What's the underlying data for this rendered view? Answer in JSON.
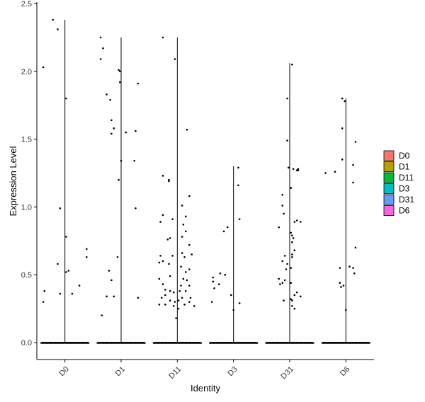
{
  "chart_data": {
    "type": "scatter",
    "subtype": "violin-with-jitter",
    "xlabel": "Identity",
    "ylabel": "Expression Level",
    "ylim": [
      0,
      2.5
    ],
    "yticks": [
      0.0,
      0.5,
      1.0,
      1.5,
      2.0,
      2.5
    ],
    "ytick_labels": [
      "0.0",
      "0.5",
      "1.0",
      "1.5",
      "2.0",
      "2.5"
    ],
    "grid": false,
    "legend_position": "right",
    "categories": [
      "D0",
      "D1",
      "D11",
      "D3",
      "D31",
      "D6"
    ],
    "fill_colors": [
      "#F8766D",
      "#B79F00",
      "#00BA38",
      "#00BFC4",
      "#619CFF",
      "#F564E3"
    ],
    "series": [
      {
        "name": "D0",
        "max": 2.38,
        "points": [
          [
            -0.5,
            2.38
          ],
          [
            -0.3,
            2.31
          ],
          [
            -0.9,
            2.03
          ],
          [
            0.05,
            1.8
          ],
          [
            -0.2,
            0.99
          ],
          [
            0.05,
            0.78
          ],
          [
            0.9,
            0.69
          ],
          [
            0.9,
            0.63
          ],
          [
            -0.3,
            0.58
          ],
          [
            0.15,
            0.53
          ],
          [
            0.05,
            0.52
          ],
          [
            -0.85,
            0.38
          ],
          [
            -0.2,
            0.36
          ],
          [
            0.3,
            0.36
          ],
          [
            0.6,
            0.42
          ],
          [
            -0.9,
            0.3
          ]
        ]
      },
      {
        "name": "D1",
        "max": 2.25,
        "points": [
          [
            -0.85,
            2.25
          ],
          [
            -0.75,
            2.17
          ],
          [
            -0.85,
            2.09
          ],
          [
            -0.1,
            2.01
          ],
          [
            -0.05,
            2.0
          ],
          [
            -0.05,
            1.92
          ],
          [
            0.7,
            1.91
          ],
          [
            -0.6,
            1.83
          ],
          [
            -0.45,
            1.79
          ],
          [
            -0.4,
            1.64
          ],
          [
            -0.3,
            1.58
          ],
          [
            0.2,
            1.55
          ],
          [
            0.6,
            1.56
          ],
          [
            -0.4,
            1.54
          ],
          [
            0.55,
            1.34
          ],
          [
            0.0,
            1.34
          ],
          [
            -0.1,
            1.2
          ],
          [
            0.6,
            0.99
          ],
          [
            -0.15,
            0.63
          ],
          [
            -0.5,
            0.53
          ],
          [
            -0.4,
            0.46
          ],
          [
            -0.6,
            0.34
          ],
          [
            -0.3,
            0.34
          ],
          [
            -0.8,
            0.2
          ],
          [
            0.7,
            0.33
          ]
        ]
      },
      {
        "name": "D11",
        "max": 2.25,
        "points": [
          [
            -0.6,
            2.25
          ],
          [
            -0.1,
            2.09
          ],
          [
            0.4,
            1.57
          ],
          [
            -0.6,
            1.23
          ],
          [
            -0.35,
            1.19
          ],
          [
            -0.35,
            1.2
          ],
          [
            0.5,
            1.08
          ],
          [
            0.2,
            1.01
          ],
          [
            -0.6,
            0.94
          ],
          [
            -0.2,
            0.91
          ],
          [
            0.35,
            0.93
          ],
          [
            -0.7,
            0.89
          ],
          [
            0.25,
            0.87
          ],
          [
            0.35,
            0.82
          ],
          [
            0.2,
            0.78
          ],
          [
            -0.3,
            0.77
          ],
          [
            -0.4,
            0.76
          ],
          [
            0.5,
            0.72
          ],
          [
            -0.7,
            0.64
          ],
          [
            -0.2,
            0.64
          ],
          [
            0.2,
            0.66
          ],
          [
            0.3,
            0.63
          ],
          [
            0.6,
            0.65
          ],
          [
            -0.75,
            0.59
          ],
          [
            -0.6,
            0.6
          ],
          [
            -0.35,
            0.58
          ],
          [
            0.15,
            0.56
          ],
          [
            0.35,
            0.52
          ],
          [
            0.5,
            0.54
          ],
          [
            0.4,
            0.46
          ],
          [
            -0.3,
            0.49
          ],
          [
            0.25,
            0.47
          ],
          [
            -0.75,
            0.47
          ],
          [
            -0.6,
            0.43
          ],
          [
            0.15,
            0.42
          ],
          [
            0.5,
            0.42
          ],
          [
            -0.15,
            0.37
          ],
          [
            -0.3,
            0.38
          ],
          [
            -0.5,
            0.39
          ],
          [
            0.1,
            0.38
          ],
          [
            0.35,
            0.38
          ],
          [
            -0.5,
            0.35
          ],
          [
            -0.65,
            0.33
          ],
          [
            0.2,
            0.33
          ],
          [
            0.55,
            0.33
          ],
          [
            -0.3,
            0.31
          ],
          [
            0.05,
            0.31
          ],
          [
            0.5,
            0.3
          ],
          [
            -0.75,
            0.28
          ],
          [
            -0.5,
            0.28
          ],
          [
            -0.15,
            0.27
          ],
          [
            0.3,
            0.28
          ],
          [
            0.7,
            0.27
          ],
          [
            -0.1,
            0.3
          ],
          [
            0.05,
            0.25
          ],
          [
            -0.05,
            0.18
          ]
        ]
      },
      {
        "name": "D3",
        "max": 1.3,
        "points": [
          [
            0.2,
            1.29
          ],
          [
            0.2,
            1.16
          ],
          [
            0.25,
            0.91
          ],
          [
            -0.25,
            0.85
          ],
          [
            -0.4,
            0.82
          ],
          [
            -0.85,
            0.48
          ],
          [
            -0.85,
            0.45
          ],
          [
            -0.55,
            0.51
          ],
          [
            -0.35,
            0.5
          ],
          [
            -0.6,
            0.43
          ],
          [
            -0.8,
            0.4
          ],
          [
            -0.1,
            0.35
          ],
          [
            -0.9,
            0.3
          ],
          [
            0.25,
            0.29
          ],
          [
            0.0,
            0.24
          ]
        ]
      },
      {
        "name": "D31",
        "max": 2.06,
        "points": [
          [
            0.1,
            2.05
          ],
          [
            -0.1,
            1.8
          ],
          [
            -0.1,
            1.49
          ],
          [
            -0.05,
            1.29
          ],
          [
            0.15,
            1.28
          ],
          [
            0.3,
            1.27
          ],
          [
            0.35,
            1.27
          ],
          [
            0.35,
            1.28
          ],
          [
            -0.3,
            1.09
          ],
          [
            0.05,
            1.14
          ],
          [
            -0.3,
            1.01
          ],
          [
            -0.25,
            0.95
          ],
          [
            0.3,
            0.9
          ],
          [
            0.2,
            0.89
          ],
          [
            0.45,
            0.89
          ],
          [
            -0.45,
            0.85
          ],
          [
            0.05,
            0.81
          ],
          [
            0.1,
            0.79
          ],
          [
            0.15,
            0.77
          ],
          [
            0.1,
            0.74
          ],
          [
            0.2,
            0.68
          ],
          [
            0.1,
            0.65
          ],
          [
            0.1,
            0.63
          ],
          [
            -0.2,
            0.64
          ],
          [
            -0.3,
            0.6
          ],
          [
            -0.1,
            0.58
          ],
          [
            0.05,
            0.55
          ],
          [
            -0.15,
            0.54
          ],
          [
            -0.45,
            0.47
          ],
          [
            -0.2,
            0.46
          ],
          [
            -0.3,
            0.44
          ],
          [
            0.05,
            0.44
          ],
          [
            -0.4,
            0.43
          ],
          [
            0.3,
            0.37
          ],
          [
            0.2,
            0.35
          ],
          [
            0.05,
            0.32
          ],
          [
            0.45,
            0.34
          ],
          [
            -0.25,
            0.31
          ],
          [
            0.1,
            0.27
          ],
          [
            0.1,
            0.31
          ],
          [
            0.2,
            0.25
          ]
        ]
      },
      {
        "name": "D6",
        "max": 1.8,
        "points": [
          [
            -0.15,
            1.8
          ],
          [
            -0.05,
            1.78
          ],
          [
            -0.15,
            1.58
          ],
          [
            -0.15,
            1.35
          ],
          [
            -0.45,
            1.26
          ],
          [
            -0.85,
            1.25
          ],
          [
            0.4,
            1.48
          ],
          [
            0.3,
            1.31
          ],
          [
            0.3,
            1.18
          ],
          [
            0.4,
            0.7
          ],
          [
            0.15,
            0.56
          ],
          [
            -0.25,
            0.55
          ],
          [
            0.3,
            0.55
          ],
          [
            0.35,
            0.51
          ],
          [
            -0.25,
            0.44
          ],
          [
            -0.1,
            0.42
          ],
          [
            -0.2,
            0.41
          ],
          [
            0.0,
            0.24
          ]
        ]
      }
    ]
  },
  "legend": {
    "items": [
      {
        "label": "D0",
        "color": "#F8766D"
      },
      {
        "label": "D1",
        "color": "#B79F00"
      },
      {
        "label": "D11",
        "color": "#00BA38"
      },
      {
        "label": "D3",
        "color": "#00BFC4"
      },
      {
        "label": "D31",
        "color": "#619CFF"
      },
      {
        "label": "D6",
        "color": "#F564E3"
      }
    ]
  }
}
